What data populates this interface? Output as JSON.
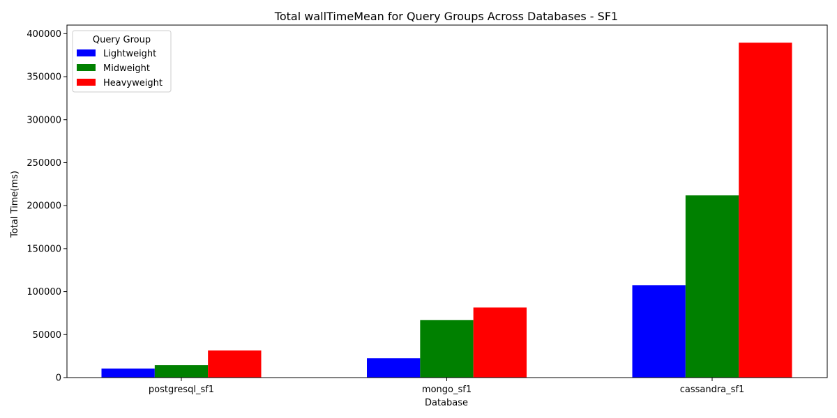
{
  "chart_data": {
    "type": "bar",
    "title": "Total wallTimeMean for Query Groups Across Databases - SF1",
    "xlabel": "Database",
    "ylabel": "Total Time(ms)",
    "categories": [
      "postgresql_sf1",
      "mongo_sf1",
      "cassandra_sf1"
    ],
    "series": [
      {
        "name": "Lightweight",
        "color": "#0000ff",
        "values": [
          10500,
          22500,
          107500
        ]
      },
      {
        "name": "Midweight",
        "color": "#008000",
        "values": [
          14500,
          67000,
          212000
        ]
      },
      {
        "name": "Heavyweight",
        "color": "#ff0000",
        "values": [
          31500,
          81500,
          389500
        ]
      }
    ],
    "ylim": [
      0,
      410000
    ],
    "yticks": [
      0,
      50000,
      100000,
      150000,
      200000,
      250000,
      300000,
      350000,
      400000
    ],
    "ytick_labels": [
      "0",
      "50000",
      "100000",
      "150000",
      "200000",
      "250000",
      "300000",
      "350000",
      "400000"
    ],
    "legend": {
      "title": "Query Group",
      "placement": "top-left"
    },
    "grid": false
  }
}
